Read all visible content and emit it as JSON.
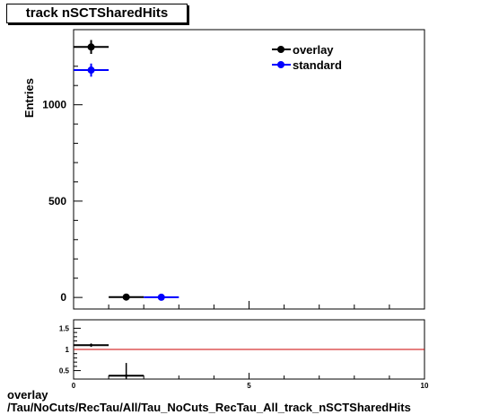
{
  "title": "track nSCTSharedHits",
  "caption": {
    "line1": "overlay",
    "line2": "/Tau/NoCuts/RecTau/All/Tau_NoCuts_RecTau_All_track_nSCTSharedHits"
  },
  "colors": {
    "overlay": "#000000",
    "standard": "#0000ff",
    "ratio_line": "#cc0000"
  },
  "chart_data": [
    {
      "type": "scatter",
      "ylabel": "Entries",
      "xlim": [
        0,
        10
      ],
      "ylim": [
        -60,
        1390
      ],
      "yticks": [
        0,
        500,
        1000
      ],
      "legend_position": "top-right",
      "series": [
        {
          "name": "overlay",
          "x": [
            0.5,
            1.5
          ],
          "y": [
            1300,
            2
          ],
          "yerr": [
            36,
            2
          ],
          "xerr": 0.5
        },
        {
          "name": "standard",
          "x": [
            0.5,
            2.5
          ],
          "y": [
            1180,
            1
          ],
          "yerr": [
            34,
            1
          ],
          "xerr": 0.5
        }
      ]
    },
    {
      "type": "scatter",
      "xlim": [
        0,
        10
      ],
      "ylim": [
        0.3,
        1.7
      ],
      "xticks": [
        0,
        5,
        10
      ],
      "yticks": [
        0.5,
        1,
        1.5
      ],
      "reference_line": 1,
      "series": [
        {
          "x": [
            0.5,
            1.5
          ],
          "y": [
            1.1,
            0.38
          ],
          "yerr": [
            0.04,
            0.3
          ],
          "xerr": 0.5
        }
      ]
    }
  ]
}
